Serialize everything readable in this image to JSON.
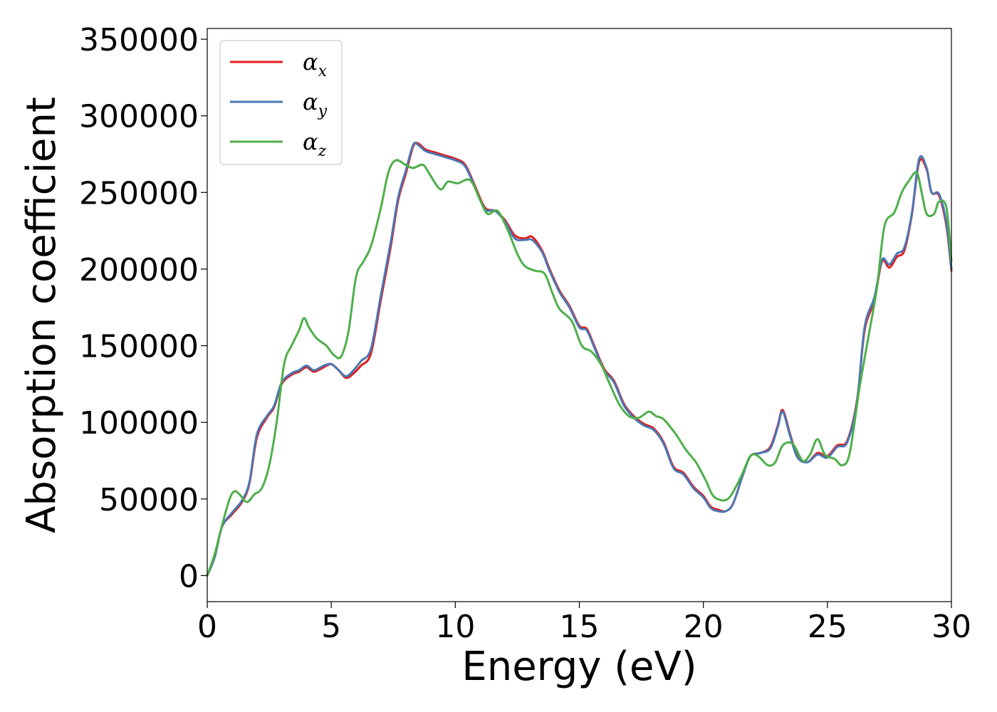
{
  "chart_data": {
    "type": "line",
    "title": "",
    "xlabel": "Energy (eV)",
    "ylabel": "Absorption coefficient",
    "xlim": [
      0,
      30
    ],
    "ylim": [
      -17000,
      357000
    ],
    "xticks": [
      0,
      5,
      10,
      15,
      20,
      25,
      30
    ],
    "yticks": [
      0,
      50000,
      100000,
      150000,
      200000,
      250000,
      300000,
      350000
    ],
    "grid": false,
    "legend_position": "top-left",
    "series": [
      {
        "name": "αx",
        "symbol": "α",
        "subscript": "x",
        "color": "#e41a1c",
        "points": [
          [
            0,
            0
          ],
          [
            0.3,
            12000
          ],
          [
            0.6,
            32000
          ],
          [
            1,
            40000
          ],
          [
            1.4,
            48000
          ],
          [
            1.7,
            60000
          ],
          [
            2,
            90000
          ],
          [
            2.4,
            103000
          ],
          [
            2.7,
            110000
          ],
          [
            3,
            125000
          ],
          [
            3.4,
            131000
          ],
          [
            3.7,
            133000
          ],
          [
            4,
            136000
          ],
          [
            4.3,
            133000
          ],
          [
            4.7,
            136000
          ],
          [
            5,
            138000
          ],
          [
            5.3,
            134000
          ],
          [
            5.6,
            129000
          ],
          [
            5.9,
            132000
          ],
          [
            6.2,
            137000
          ],
          [
            6.6,
            145000
          ],
          [
            7,
            180000
          ],
          [
            7.4,
            215000
          ],
          [
            7.7,
            245000
          ],
          [
            8,
            262000
          ],
          [
            8.3,
            280000
          ],
          [
            8.5,
            282000
          ],
          [
            8.8,
            278000
          ],
          [
            9.2,
            276000
          ],
          [
            9.6,
            274000
          ],
          [
            10,
            272000
          ],
          [
            10.4,
            268000
          ],
          [
            10.8,
            254000
          ],
          [
            11.2,
            240000
          ],
          [
            11.6,
            238000
          ],
          [
            12,
            232000
          ],
          [
            12.4,
            222000
          ],
          [
            12.8,
            220000
          ],
          [
            13.1,
            221000
          ],
          [
            13.5,
            212000
          ],
          [
            13.8,
            200000
          ],
          [
            14.2,
            186000
          ],
          [
            14.6,
            176000
          ],
          [
            15,
            163000
          ],
          [
            15.3,
            161000
          ],
          [
            15.6,
            150000
          ],
          [
            16,
            135000
          ],
          [
            16.4,
            127000
          ],
          [
            16.8,
            112000
          ],
          [
            17.2,
            104000
          ],
          [
            17.6,
            99000
          ],
          [
            18,
            96000
          ],
          [
            18.4,
            87000
          ],
          [
            18.8,
            71000
          ],
          [
            19.2,
            67000
          ],
          [
            19.6,
            58000
          ],
          [
            20,
            52000
          ],
          [
            20.3,
            45000
          ],
          [
            20.6,
            43000
          ],
          [
            20.9,
            42000
          ],
          [
            21.2,
            47000
          ],
          [
            21.6,
            66000
          ],
          [
            21.9,
            78000
          ],
          [
            22.3,
            80000
          ],
          [
            22.7,
            84000
          ],
          [
            23,
            98000
          ],
          [
            23.2,
            108000
          ],
          [
            23.5,
            92000
          ],
          [
            23.8,
            78000
          ],
          [
            24.2,
            74000
          ],
          [
            24.6,
            80000
          ],
          [
            25,
            78000
          ],
          [
            25.4,
            85000
          ],
          [
            25.8,
            88000
          ],
          [
            26.2,
            115000
          ],
          [
            26.5,
            160000
          ],
          [
            26.9,
            180000
          ],
          [
            27.2,
            205000
          ],
          [
            27.5,
            201000
          ],
          [
            27.8,
            208000
          ],
          [
            28.1,
            212000
          ],
          [
            28.4,
            235000
          ],
          [
            28.7,
            270000
          ],
          [
            29,
            265000
          ],
          [
            29.2,
            250000
          ],
          [
            29.5,
            248000
          ],
          [
            29.8,
            228000
          ],
          [
            30,
            199000
          ]
        ]
      },
      {
        "name": "αy",
        "symbol": "α",
        "subscript": "y",
        "color": "#4a77b4",
        "points": [
          [
            0,
            0
          ],
          [
            0.3,
            12000
          ],
          [
            0.6,
            32000
          ],
          [
            1,
            41000
          ],
          [
            1.4,
            49000
          ],
          [
            1.7,
            61000
          ],
          [
            2,
            92000
          ],
          [
            2.4,
            104000
          ],
          [
            2.7,
            111000
          ],
          [
            3,
            126000
          ],
          [
            3.4,
            132000
          ],
          [
            3.7,
            134000
          ],
          [
            4,
            137000
          ],
          [
            4.3,
            134000
          ],
          [
            4.7,
            137000
          ],
          [
            5,
            138000
          ],
          [
            5.3,
            134000
          ],
          [
            5.6,
            130000
          ],
          [
            5.9,
            134000
          ],
          [
            6.2,
            140000
          ],
          [
            6.6,
            148000
          ],
          [
            7,
            183000
          ],
          [
            7.4,
            218000
          ],
          [
            7.7,
            247000
          ],
          [
            8,
            264000
          ],
          [
            8.3,
            281000
          ],
          [
            8.5,
            281000
          ],
          [
            8.8,
            277000
          ],
          [
            9.2,
            275000
          ],
          [
            9.6,
            273000
          ],
          [
            10,
            271000
          ],
          [
            10.4,
            267000
          ],
          [
            10.8,
            253000
          ],
          [
            11.2,
            239000
          ],
          [
            11.6,
            238000
          ],
          [
            12,
            231000
          ],
          [
            12.4,
            220000
          ],
          [
            12.8,
            219000
          ],
          [
            13.1,
            219000
          ],
          [
            13.5,
            211000
          ],
          [
            13.8,
            199000
          ],
          [
            14.2,
            185000
          ],
          [
            14.6,
            175000
          ],
          [
            15,
            162000
          ],
          [
            15.3,
            160000
          ],
          [
            15.6,
            149000
          ],
          [
            16,
            134000
          ],
          [
            16.4,
            126000
          ],
          [
            16.8,
            111000
          ],
          [
            17.2,
            103000
          ],
          [
            17.6,
            98000
          ],
          [
            18,
            95000
          ],
          [
            18.4,
            86000
          ],
          [
            18.8,
            70000
          ],
          [
            19.2,
            66000
          ],
          [
            19.6,
            57000
          ],
          [
            20,
            51000
          ],
          [
            20.3,
            44000
          ],
          [
            20.6,
            42000
          ],
          [
            20.9,
            42000
          ],
          [
            21.2,
            47000
          ],
          [
            21.6,
            66000
          ],
          [
            21.9,
            78000
          ],
          [
            22.3,
            80000
          ],
          [
            22.7,
            83000
          ],
          [
            23,
            97000
          ],
          [
            23.2,
            107000
          ],
          [
            23.5,
            91000
          ],
          [
            23.8,
            77000
          ],
          [
            24.2,
            74000
          ],
          [
            24.6,
            79000
          ],
          [
            25,
            77000
          ],
          [
            25.4,
            84000
          ],
          [
            25.8,
            87000
          ],
          [
            26.2,
            114000
          ],
          [
            26.5,
            162000
          ],
          [
            26.9,
            182000
          ],
          [
            27.2,
            206000
          ],
          [
            27.5,
            203000
          ],
          [
            27.8,
            210000
          ],
          [
            28.1,
            214000
          ],
          [
            28.4,
            236000
          ],
          [
            28.7,
            272000
          ],
          [
            29,
            266000
          ],
          [
            29.2,
            250000
          ],
          [
            29.5,
            249000
          ],
          [
            29.8,
            230000
          ],
          [
            30,
            200000
          ]
        ]
      },
      {
        "name": "αz",
        "symbol": "α",
        "subscript": "z",
        "color": "#4daf4a",
        "points": [
          [
            0,
            0
          ],
          [
            0.3,
            14000
          ],
          [
            0.6,
            33000
          ],
          [
            0.9,
            50000
          ],
          [
            1.1,
            55000
          ],
          [
            1.3,
            53000
          ],
          [
            1.6,
            48000
          ],
          [
            1.9,
            53000
          ],
          [
            2.2,
            57000
          ],
          [
            2.5,
            72000
          ],
          [
            2.8,
            100000
          ],
          [
            3.1,
            138000
          ],
          [
            3.4,
            150000
          ],
          [
            3.7,
            160000
          ],
          [
            3.9,
            168000
          ],
          [
            4.1,
            162000
          ],
          [
            4.4,
            155000
          ],
          [
            4.8,
            150000
          ],
          [
            5.1,
            144000
          ],
          [
            5.4,
            143000
          ],
          [
            5.7,
            160000
          ],
          [
            6,
            195000
          ],
          [
            6.3,
            205000
          ],
          [
            6.6,
            215000
          ],
          [
            7,
            240000
          ],
          [
            7.3,
            263000
          ],
          [
            7.6,
            271000
          ],
          [
            8,
            268000
          ],
          [
            8.3,
            266000
          ],
          [
            8.7,
            268000
          ],
          [
            9,
            261000
          ],
          [
            9.4,
            252000
          ],
          [
            9.7,
            257000
          ],
          [
            10.1,
            256000
          ],
          [
            10.6,
            258000
          ],
          [
            11,
            245000
          ],
          [
            11.3,
            236000
          ],
          [
            11.7,
            238000
          ],
          [
            12.1,
            226000
          ],
          [
            12.5,
            210000
          ],
          [
            12.8,
            202000
          ],
          [
            13.2,
            199000
          ],
          [
            13.6,
            197000
          ],
          [
            13.9,
            185000
          ],
          [
            14.2,
            174000
          ],
          [
            14.7,
            166000
          ],
          [
            15.1,
            150000
          ],
          [
            15.5,
            146000
          ],
          [
            15.9,
            137000
          ],
          [
            16.2,
            126000
          ],
          [
            16.6,
            112000
          ],
          [
            17,
            104000
          ],
          [
            17.4,
            103000
          ],
          [
            17.8,
            107000
          ],
          [
            18.1,
            104000
          ],
          [
            18.4,
            102000
          ],
          [
            18.9,
            92000
          ],
          [
            19.3,
            82000
          ],
          [
            19.7,
            74000
          ],
          [
            20.1,
            62000
          ],
          [
            20.4,
            52000
          ],
          [
            20.8,
            49000
          ],
          [
            21.1,
            52000
          ],
          [
            21.5,
            64000
          ],
          [
            21.9,
            78000
          ],
          [
            22.2,
            78000
          ],
          [
            22.6,
            72000
          ],
          [
            22.9,
            74000
          ],
          [
            23.2,
            85000
          ],
          [
            23.6,
            86000
          ],
          [
            24,
            75000
          ],
          [
            24.3,
            79000
          ],
          [
            24.6,
            89000
          ],
          [
            24.9,
            79000
          ],
          [
            25.3,
            76000
          ],
          [
            25.6,
            72000
          ],
          [
            25.9,
            80000
          ],
          [
            26.3,
            123000
          ],
          [
            26.7,
            160000
          ],
          [
            27,
            188000
          ],
          [
            27.3,
            228000
          ],
          [
            27.7,
            237000
          ],
          [
            28,
            250000
          ],
          [
            28.3,
            258000
          ],
          [
            28.6,
            263000
          ],
          [
            28.8,
            250000
          ],
          [
            29,
            236000
          ],
          [
            29.3,
            236000
          ],
          [
            29.5,
            244000
          ],
          [
            29.8,
            240000
          ],
          [
            30,
            205000
          ]
        ]
      }
    ]
  }
}
